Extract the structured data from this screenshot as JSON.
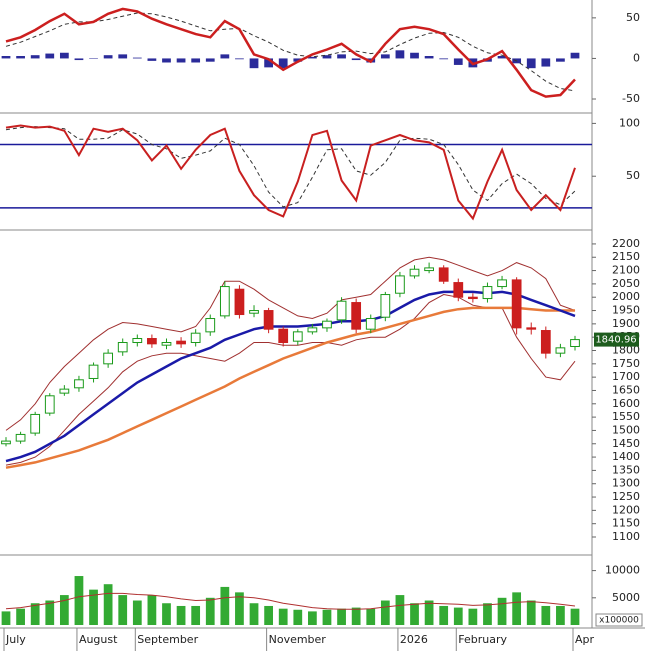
{
  "chart_data": [
    {
      "type": "line",
      "ylim": [
        -66,
        72
      ],
      "yticks": [
        -50,
        0,
        50
      ],
      "series": [
        {
          "type": "bar",
          "color": "#2b2b9a",
          "values": [
            3,
            3,
            4,
            6,
            7,
            -2,
            0,
            4,
            5,
            1,
            -3,
            -5,
            -5,
            -5,
            -4,
            5,
            -1,
            -12,
            -11,
            -12,
            -4,
            2,
            4,
            5,
            -2,
            -5,
            5,
            10,
            7,
            3,
            -1,
            -8,
            -11,
            -4,
            3,
            -6,
            -12,
            -10,
            -4,
            7
          ]
        },
        {
          "color": "#333333",
          "dashed": true,
          "width": 1,
          "values": [
            15,
            20,
            27,
            34,
            42,
            45,
            45,
            48,
            52,
            56,
            55,
            51,
            46,
            40,
            34,
            36,
            37,
            28,
            20,
            10,
            4,
            2,
            4,
            8,
            9,
            6,
            8,
            17,
            25,
            31,
            32,
            26,
            15,
            7,
            4,
            -3,
            -15,
            -28,
            -37,
            -40
          ]
        },
        {
          "color": "#cc1f1f",
          "width": 2.5,
          "values": [
            21,
            26,
            35,
            46,
            55,
            42,
            45,
            55,
            61,
            58,
            49,
            42,
            36,
            30,
            26,
            46,
            36,
            5,
            -1,
            -14,
            -4,
            5,
            11,
            18,
            5,
            -4,
            18,
            36,
            39,
            36,
            30,
            11,
            -7,
            -1,
            9,
            -14,
            -39,
            -47,
            -45,
            -26
          ]
        }
      ]
    },
    {
      "type": "line",
      "ylim": [
        1,
        107
      ],
      "yticks": [
        50,
        100
      ],
      "hlines": [
        80,
        20
      ],
      "hline_color": "#1a1a9a",
      "series": [
        {
          "color": "#333333",
          "dashed": true,
          "width": 1,
          "values": [
            94,
            96,
            97,
            96,
            95,
            85,
            85,
            86,
            94,
            90,
            80,
            76,
            67,
            70,
            74,
            86,
            80,
            60,
            35,
            21,
            25,
            49,
            75,
            76,
            55,
            51,
            63,
            84,
            86,
            85,
            80,
            61,
            37,
            27,
            43,
            52,
            43,
            29,
            23,
            36
          ]
        },
        {
          "color": "#c82020",
          "width": 2,
          "values": [
            96,
            98,
            96,
            97,
            93,
            70,
            95,
            92,
            95,
            84,
            65,
            79,
            57,
            75,
            89,
            95,
            55,
            32,
            18,
            12,
            45,
            89,
            93,
            46,
            27,
            79,
            84,
            89,
            84,
            82,
            75,
            27,
            10,
            45,
            75,
            37,
            18,
            32,
            18,
            58
          ]
        }
      ]
    },
    {
      "type": "candlestick",
      "ylim": [
        1040,
        2241
      ],
      "yticks": [
        1100,
        1150,
        1200,
        1250,
        1300,
        1350,
        1400,
        1450,
        1500,
        1550,
        1600,
        1650,
        1700,
        1750,
        1800,
        1850,
        1900,
        1950,
        2000,
        2050,
        2100,
        2150,
        2200
      ],
      "up_color": "#1a9a1a",
      "down_color": "#cc1f1f",
      "open": [
        1450,
        1460,
        1490,
        1565,
        1640,
        1660,
        1695,
        1750,
        1795,
        1830,
        1845,
        1820,
        1835,
        1830,
        1870,
        1930,
        2030,
        1940,
        1950,
        1880,
        1835,
        1870,
        1885,
        1915,
        1980,
        1880,
        1925,
        2015,
        2080,
        2100,
        2110,
        2055,
        2000,
        1995,
        2040,
        2065,
        1885,
        1875,
        1790,
        1815
      ],
      "high": [
        1475,
        1495,
        1570,
        1640,
        1670,
        1705,
        1755,
        1805,
        1845,
        1860,
        1860,
        1845,
        1850,
        1880,
        1935,
        2060,
        2045,
        1970,
        1960,
        1890,
        1880,
        1900,
        1920,
        2000,
        1995,
        1935,
        2020,
        2095,
        2120,
        2130,
        2120,
        2070,
        2015,
        2055,
        2080,
        2075,
        1905,
        1890,
        1825,
        1855
      ],
      "low": [
        1440,
        1450,
        1480,
        1555,
        1630,
        1645,
        1680,
        1735,
        1780,
        1815,
        1810,
        1805,
        1810,
        1815,
        1855,
        1920,
        1920,
        1925,
        1865,
        1815,
        1820,
        1860,
        1870,
        1900,
        1865,
        1865,
        1910,
        2000,
        2070,
        2090,
        2050,
        1985,
        1980,
        1980,
        2030,
        1860,
        1860,
        1770,
        1775,
        1800
      ],
      "close": [
        1460,
        1485,
        1560,
        1630,
        1655,
        1690,
        1745,
        1790,
        1830,
        1845,
        1825,
        1830,
        1825,
        1865,
        1920,
        2040,
        1935,
        1950,
        1880,
        1830,
        1870,
        1885,
        1910,
        1985,
        1880,
        1920,
        2010,
        2080,
        2105,
        2110,
        2060,
        2000,
        1995,
        2040,
        2065,
        1885,
        1880,
        1790,
        1810,
        1840.96
      ],
      "last_color": "#1d5c1d",
      "series": [
        {
          "color": "#a03030",
          "width": 1,
          "values": [
            1500,
            1540,
            1600,
            1680,
            1740,
            1790,
            1840,
            1880,
            1905,
            1900,
            1890,
            1880,
            1870,
            1890,
            1960,
            2060,
            2060,
            2030,
            1990,
            1960,
            1930,
            1920,
            1940,
            1990,
            2000,
            2010,
            2060,
            2110,
            2140,
            2150,
            2140,
            2120,
            2100,
            2080,
            2100,
            2130,
            2110,
            2070,
            1970,
            1950
          ]
        },
        {
          "color": "#a03030",
          "width": 1,
          "values": [
            1370,
            1380,
            1400,
            1440,
            1500,
            1560,
            1610,
            1660,
            1720,
            1760,
            1780,
            1790,
            1790,
            1780,
            1770,
            1760,
            1790,
            1830,
            1830,
            1820,
            1820,
            1830,
            1830,
            1820,
            1840,
            1850,
            1850,
            1880,
            1920,
            1980,
            2010,
            2000,
            1970,
            1960,
            1960,
            1850,
            1770,
            1700,
            1690,
            1760
          ]
        },
        {
          "color": "#e87a3a",
          "width": 2.5,
          "values": [
            1360,
            1370,
            1380,
            1395,
            1410,
            1425,
            1445,
            1465,
            1490,
            1515,
            1540,
            1565,
            1590,
            1615,
            1640,
            1665,
            1695,
            1720,
            1745,
            1770,
            1790,
            1810,
            1830,
            1845,
            1860,
            1870,
            1885,
            1900,
            1915,
            1930,
            1945,
            1955,
            1960,
            1960,
            1960,
            1960,
            1955,
            1950,
            1950,
            1950
          ]
        },
        {
          "color": "#1a1aa8",
          "width": 2.5,
          "values": [
            1385,
            1400,
            1420,
            1450,
            1480,
            1520,
            1560,
            1600,
            1640,
            1680,
            1710,
            1740,
            1770,
            1790,
            1810,
            1840,
            1860,
            1880,
            1890,
            1890,
            1890,
            1895,
            1900,
            1910,
            1910,
            1915,
            1930,
            1960,
            1990,
            2010,
            2020,
            2020,
            2020,
            2015,
            2020,
            2010,
            1990,
            1970,
            1950,
            1930
          ]
        }
      ]
    },
    {
      "type": "bar",
      "ylim": [
        0,
        12500
      ],
      "yticks": [
        5000,
        10000
      ],
      "color": "#33aa33",
      "unit_label": "x100000",
      "categories": [
        "July",
        null,
        null,
        null,
        null,
        "August",
        null,
        null,
        null,
        "September",
        null,
        null,
        null,
        null,
        null,
        null,
        null,
        null,
        "November",
        null,
        null,
        null,
        null,
        null,
        null,
        null,
        null,
        "2026",
        null,
        null,
        null,
        "February",
        null,
        null,
        null,
        null,
        null,
        null,
        null,
        "Apr"
      ],
      "values": [
        2500,
        3000,
        4000,
        4500,
        5500,
        9000,
        6500,
        7500,
        5500,
        4500,
        5500,
        4000,
        3500,
        3500,
        5000,
        7000,
        6000,
        4000,
        3500,
        3000,
        2800,
        2500,
        2800,
        3000,
        3200,
        3000,
        4500,
        5500,
        4000,
        4500,
        3500,
        3200,
        3000,
        4000,
        5000,
        6000,
        4500,
        3500,
        3500,
        3000
      ],
      "series": [
        {
          "color": "#b03030",
          "width": 1,
          "values": [
            3000,
            3200,
            3600,
            4000,
            4500,
            5200,
            5500,
            5800,
            5800,
            5600,
            5500,
            5200,
            4800,
            4500,
            4600,
            5000,
            5200,
            5000,
            4600,
            4000,
            3600,
            3200,
            3000,
            2900,
            2900,
            3000,
            3300,
            3600,
            3800,
            4000,
            3900,
            3800,
            3600,
            3700,
            3900,
            4200,
            4300,
            4100,
            3800,
            3500
          ]
        }
      ]
    }
  ]
}
